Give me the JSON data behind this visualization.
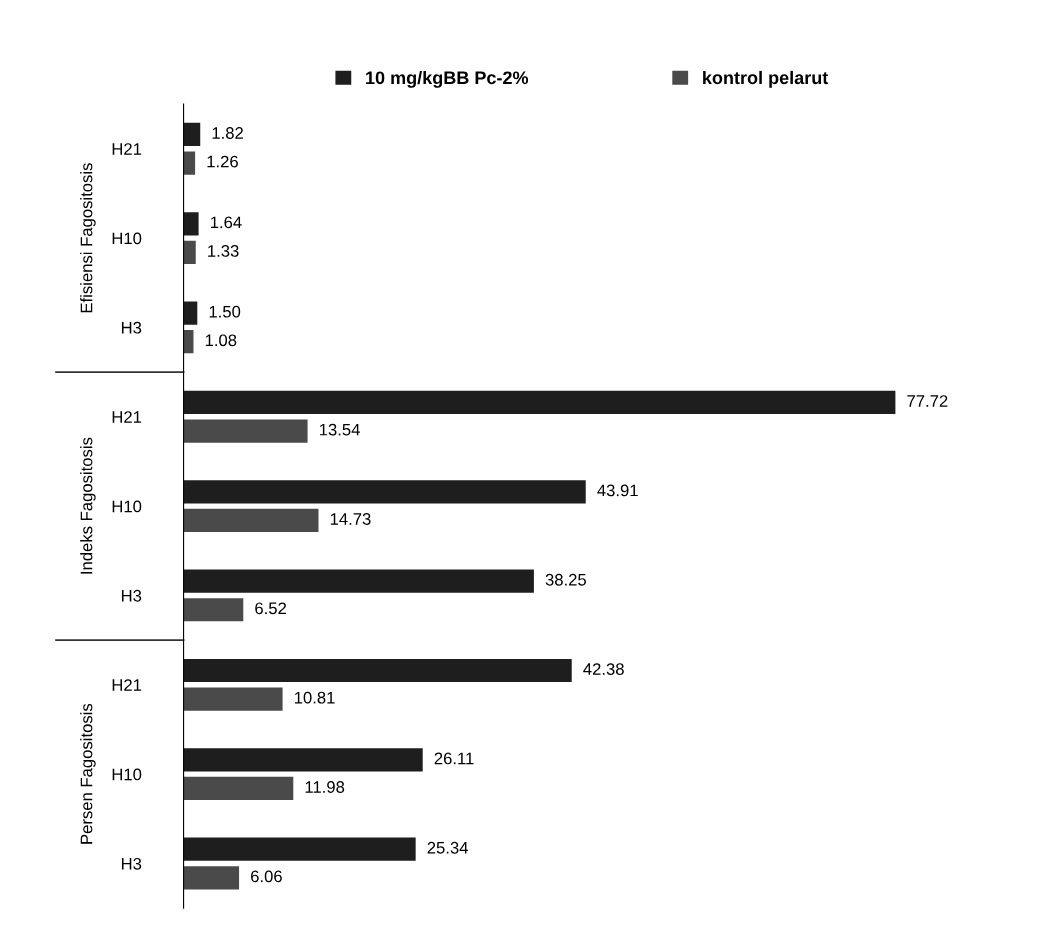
{
  "chart_data": {
    "type": "bar",
    "orientation": "horizontal",
    "categories": [
      "H21",
      "H10",
      "H3",
      "H21",
      "H10",
      "H3",
      "H21",
      "H10",
      "H3"
    ],
    "series": [
      {
        "name": "10 mg/kgBB Pc-2%",
        "color": "#1e1e1e",
        "values": [
          1.82,
          1.64,
          1.5,
          77.72,
          43.91,
          38.25,
          42.38,
          26.11,
          25.34
        ],
        "value_labels": [
          "1.82",
          "1.64",
          "1.50",
          "77.72",
          "43.91",
          "38.25",
          "42.38",
          "26.11",
          "25.34"
        ]
      },
      {
        "name": "kontrol pelarut",
        "color": "#4a4a4a",
        "values": [
          1.26,
          1.33,
          1.08,
          13.54,
          14.73,
          6.52,
          10.81,
          11.98,
          6.06
        ],
        "value_labels": [
          "1.26",
          "1.33",
          "1.08",
          "13.54",
          "14.73",
          "6.52",
          "10.81",
          "11.98",
          "6.06"
        ]
      }
    ],
    "annotations": [
      "Efisiensi Fagositosis",
      "Indeks Fagositosis",
      "Persen Fagositosis"
    ],
    "legend": "top",
    "tick_labels": "y",
    "grid": false
  }
}
